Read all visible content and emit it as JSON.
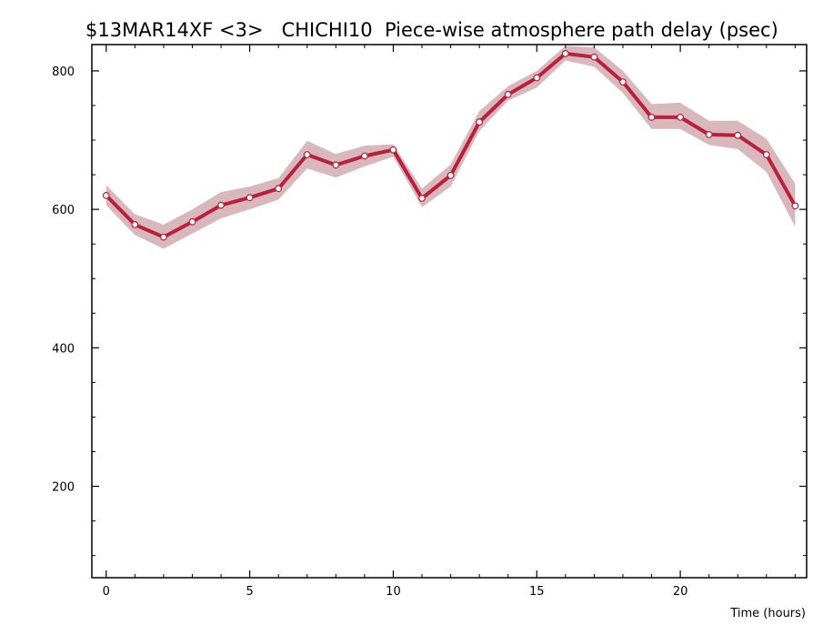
{
  "chart_data": {
    "type": "line",
    "title": "$13MAR14XF <3>   CHICHI10  Piece-wise atmosphere path delay (psec)",
    "xlabel": "Time (hours)",
    "ylabel": "",
    "xlim": [
      -0.5,
      24.4
    ],
    "ylim": [
      68,
      838
    ],
    "x_ticks": [
      0,
      5,
      10,
      15,
      20
    ],
    "x_tick_labels": [
      "0",
      "5",
      "10",
      "15",
      "20"
    ],
    "y_ticks": [
      200,
      400,
      600,
      800
    ],
    "y_tick_labels": [
      "200",
      "400",
      "600",
      "800"
    ],
    "grid": false,
    "legend": "none",
    "colors": {
      "line": "#b8203c",
      "band": "#d8b8bc",
      "marker_fill": "#ffffff"
    },
    "series": [
      {
        "x": [
          0,
          1,
          2,
          3,
          4,
          5,
          6,
          7,
          8,
          9,
          10,
          11,
          12,
          13,
          14,
          15,
          16,
          17,
          18,
          19,
          20,
          21,
          22,
          23,
          24
        ],
        "values": [
          620,
          578,
          560,
          582,
          606,
          617,
          630,
          679,
          664,
          677,
          686,
          616,
          649,
          726,
          766,
          790,
          825,
          820,
          784,
          733,
          733,
          708,
          707,
          679,
          605
        ],
        "upper": [
          635,
          593,
          578,
          600,
          625,
          633,
          645,
          699,
          680,
          692,
          694,
          630,
          665,
          742,
          778,
          800,
          836,
          834,
          800,
          752,
          754,
          728,
          728,
          702,
          637
        ],
        "lower": [
          606,
          563,
          543,
          565,
          587,
          600,
          614,
          659,
          646,
          662,
          676,
          603,
          633,
          713,
          757,
          776,
          815,
          806,
          768,
          716,
          716,
          693,
          687,
          654,
          575
        ]
      }
    ]
  }
}
